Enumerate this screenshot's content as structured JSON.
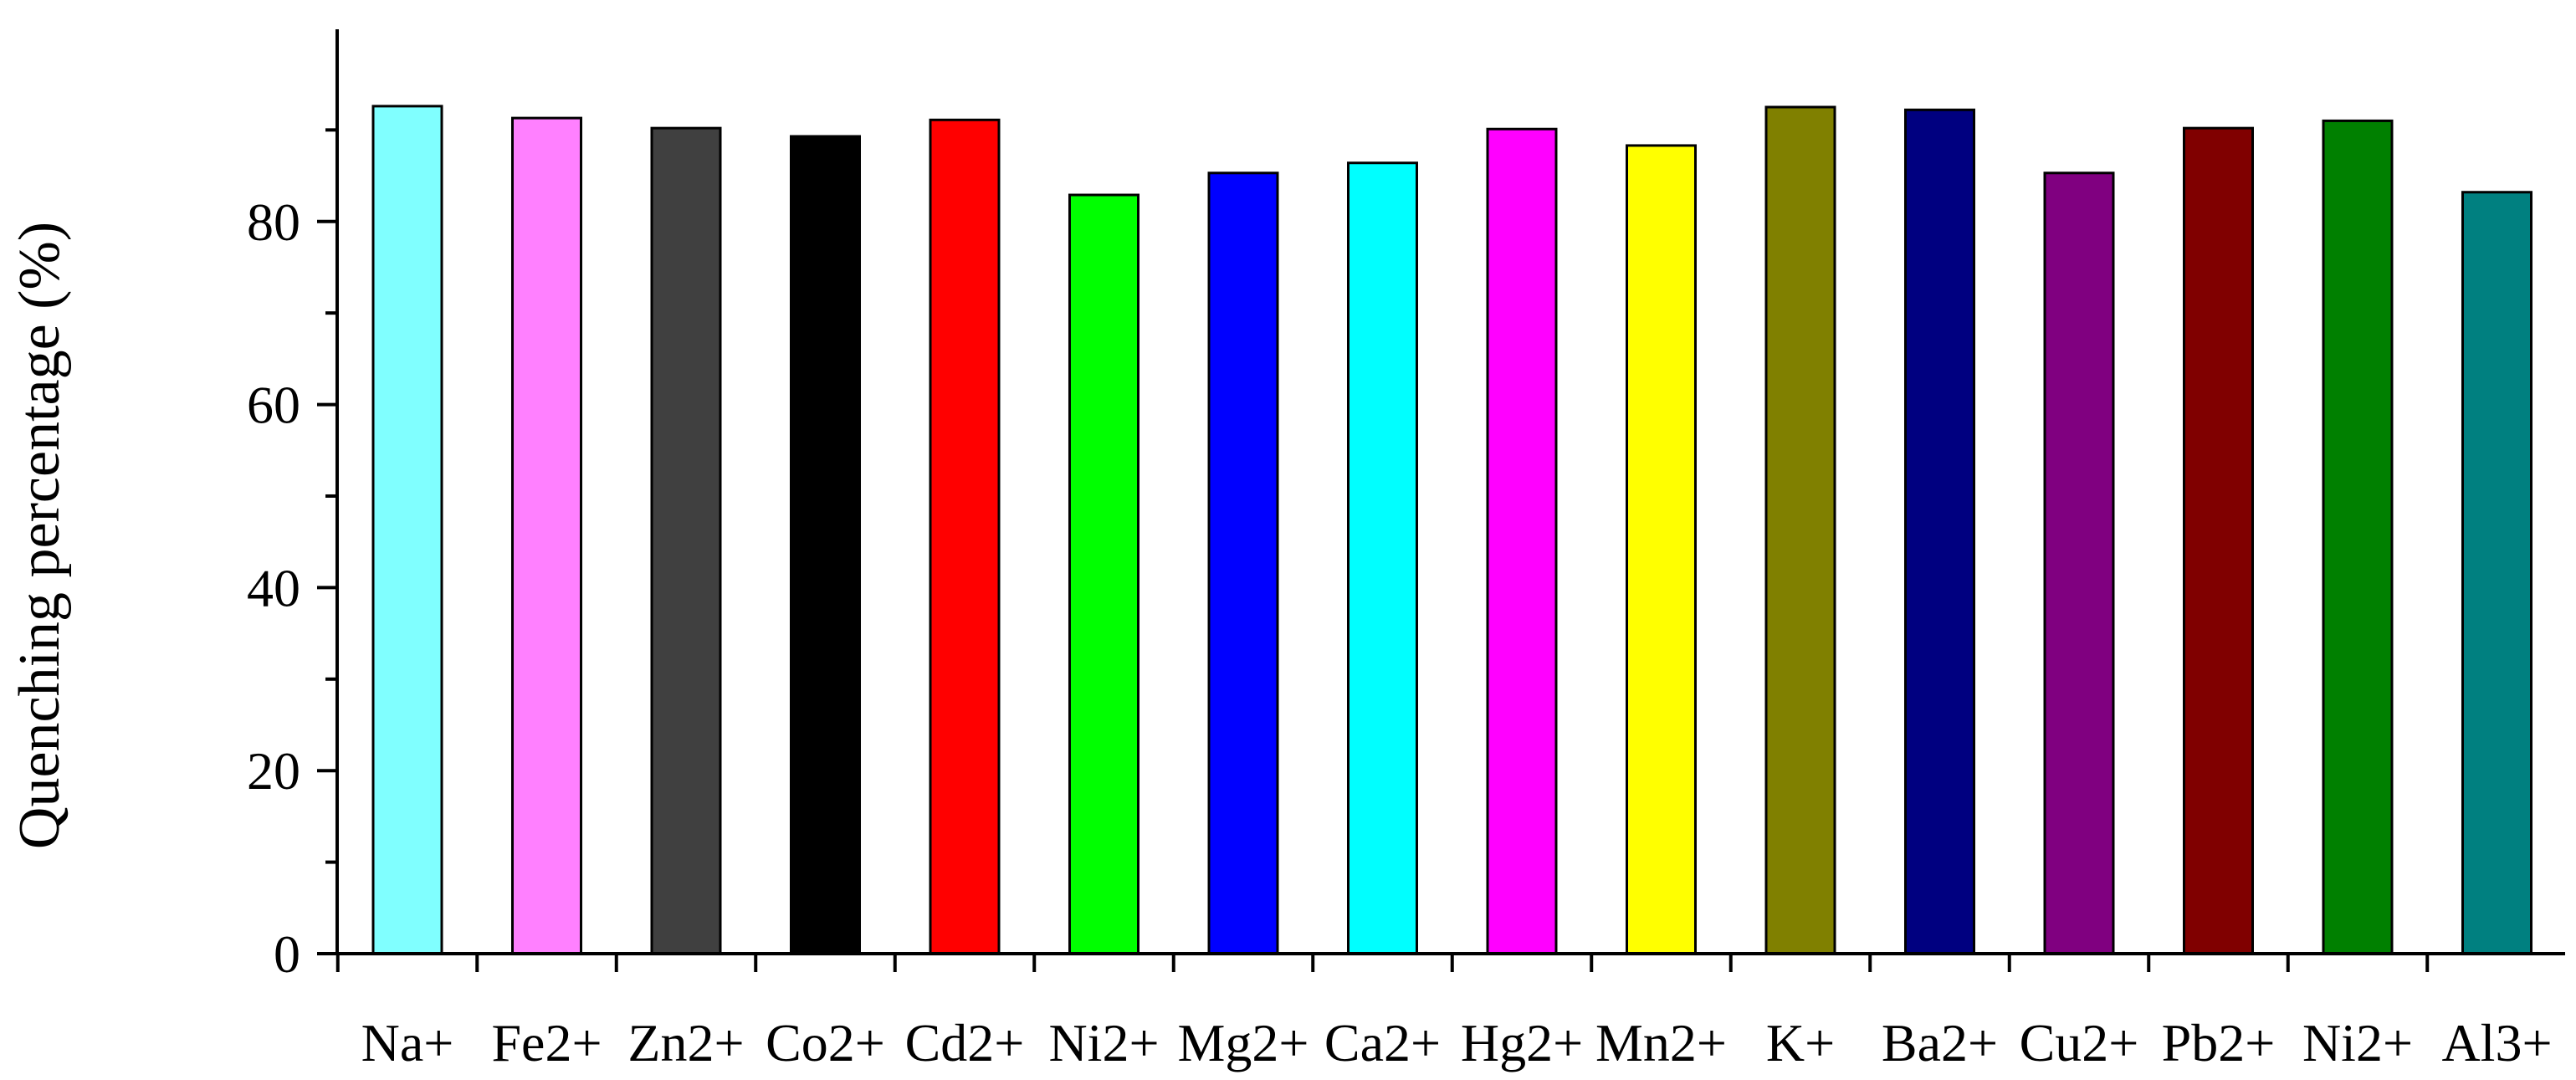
{
  "chart_data": {
    "type": "bar",
    "categories": [
      "Na+",
      "Fe2+",
      "Zn2+",
      "Co2+",
      "Cd2+",
      "Ni2+",
      "Mg2+",
      "Ca2+",
      "Hg2+",
      "Mn2+",
      "K+",
      "Ba2+",
      "Cu2+",
      "Pb2+",
      "Ni2+",
      "Al3+"
    ],
    "values": [
      92.6,
      91.3,
      90.2,
      89.3,
      91.1,
      82.9,
      85.3,
      86.4,
      90.1,
      88.3,
      92.5,
      92.2,
      85.3,
      90.2,
      91.0,
      83.2
    ],
    "colors": [
      "#80FFFF",
      "#FF80FF",
      "#404040",
      "#000000",
      "#FF0000",
      "#00FF00",
      "#0000FF",
      "#00FFFF",
      "#FF00FF",
      "#FFFF00",
      "#808000",
      "#000080",
      "#800080",
      "#800000",
      "#008000",
      "#008080"
    ],
    "title": "",
    "xlabel": "",
    "ylabel": "Quenching percentage (%)",
    "ylim": [
      0,
      101
    ],
    "yticks": [
      0,
      20,
      40,
      60,
      80
    ],
    "grid": false
  }
}
